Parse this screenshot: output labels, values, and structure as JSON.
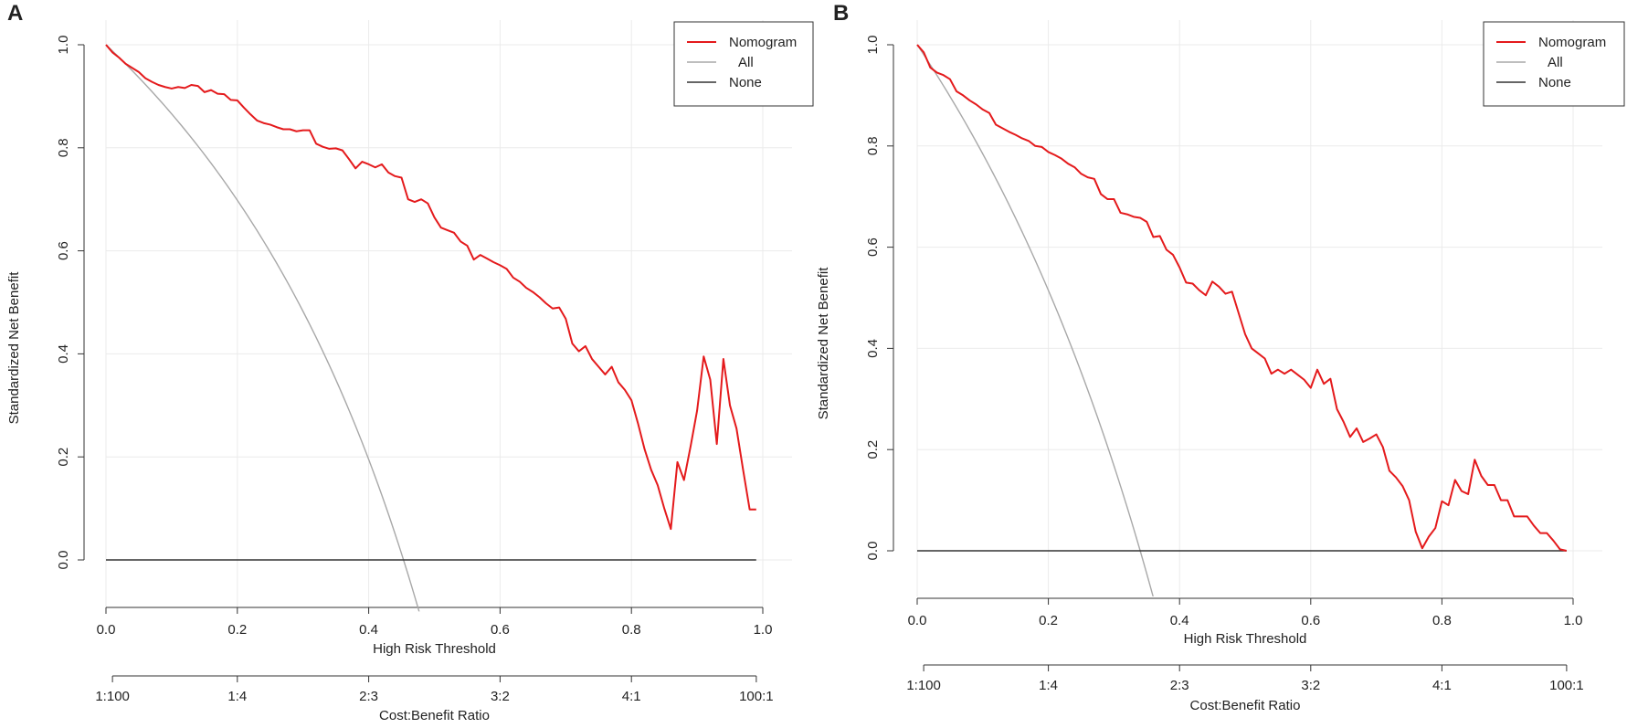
{
  "colors": {
    "model": "#e41a1c",
    "all": "#a8a8a8",
    "none": "#333333",
    "grid": "#ebebeb",
    "axis": "#333333"
  },
  "chart_data": [
    {
      "panel_label": "A",
      "type": "line",
      "title": "",
      "xlabel": "High Risk Threshold",
      "ylabel": "Standardized Net Benefit",
      "xlim": [
        0,
        1
      ],
      "ylim": [
        -0.1,
        1.0
      ],
      "x_ticks": [
        0,
        0.2,
        0.4,
        0.6,
        0.8,
        1.0
      ],
      "x_tick_labels": [
        "0.0",
        "0.2",
        "0.4",
        "0.6",
        "0.8",
        "1.0"
      ],
      "y_ticks": [
        0,
        0.2,
        0.4,
        0.6,
        0.8,
        1.0
      ],
      "y_tick_labels": [
        "0.0",
        "0.2",
        "0.4",
        "0.6",
        "0.8",
        "1.0"
      ],
      "secondary_xlabel": "Cost:Benefit Ratio",
      "secondary_ticks": [
        0.0099,
        0.2,
        0.4,
        0.6,
        0.8,
        0.9901
      ],
      "secondary_tick_labels": [
        "1:100",
        "1:4",
        "2:3",
        "3:2",
        "4:1",
        "100:1"
      ],
      "legend": {
        "position": "top-right",
        "entries": [
          "Nomogram",
          "All",
          "None"
        ]
      },
      "prevalence": 0.453,
      "series": [
        {
          "name": "Nomogram",
          "x": [
            0.0,
            0.01,
            0.02,
            0.03,
            0.04,
            0.05,
            0.06,
            0.07,
            0.08,
            0.09,
            0.1,
            0.11,
            0.12,
            0.13,
            0.14,
            0.15,
            0.16,
            0.17,
            0.18,
            0.19,
            0.2,
            0.21,
            0.22,
            0.23,
            0.24,
            0.25,
            0.26,
            0.27,
            0.28,
            0.29,
            0.3,
            0.31,
            0.32,
            0.33,
            0.34,
            0.35,
            0.36,
            0.37,
            0.38,
            0.39,
            0.4,
            0.41,
            0.42,
            0.43,
            0.44,
            0.45,
            0.46,
            0.47,
            0.48,
            0.49,
            0.5,
            0.51,
            0.52,
            0.53,
            0.54,
            0.55,
            0.56,
            0.57,
            0.58,
            0.59,
            0.6,
            0.61,
            0.62,
            0.63,
            0.64,
            0.65,
            0.66,
            0.67,
            0.68,
            0.69,
            0.7,
            0.71,
            0.72,
            0.73,
            0.74,
            0.75,
            0.76,
            0.77,
            0.78,
            0.79,
            0.8,
            0.81,
            0.82,
            0.83,
            0.84,
            0.85,
            0.86,
            0.87,
            0.88,
            0.89,
            0.9,
            0.91,
            0.92,
            0.93,
            0.94,
            0.95,
            0.96,
            0.97,
            0.98,
            0.99
          ],
          "y": [
            1.0,
            0.985,
            0.975,
            0.963,
            0.955,
            0.947,
            0.935,
            0.928,
            0.922,
            0.918,
            0.915,
            0.918,
            0.916,
            0.922,
            0.92,
            0.908,
            0.912,
            0.905,
            0.904,
            0.893,
            0.892,
            0.878,
            0.865,
            0.853,
            0.848,
            0.845,
            0.84,
            0.836,
            0.836,
            0.832,
            0.834,
            0.834,
            0.808,
            0.802,
            0.798,
            0.799,
            0.795,
            0.778,
            0.76,
            0.773,
            0.768,
            0.762,
            0.768,
            0.752,
            0.745,
            0.742,
            0.7,
            0.695,
            0.7,
            0.692,
            0.665,
            0.645,
            0.64,
            0.635,
            0.618,
            0.61,
            0.583,
            0.592,
            0.585,
            0.578,
            0.572,
            0.565,
            0.548,
            0.54,
            0.528,
            0.52,
            0.51,
            0.498,
            0.488,
            0.49,
            0.468,
            0.42,
            0.405,
            0.415,
            0.39,
            0.375,
            0.36,
            0.375,
            0.345,
            0.33,
            0.31,
            0.265,
            0.215,
            0.175,
            0.145,
            0.1,
            0.06,
            0.19,
            0.155,
            0.22,
            0.29,
            0.395,
            0.35,
            0.225,
            0.39,
            0.3,
            0.255,
            0.175,
            0.098,
            0.098
          ]
        }
      ]
    },
    {
      "panel_label": "B",
      "type": "line",
      "title": "",
      "xlabel": "High Risk Threshold",
      "ylabel": "Standardized Net Benefit",
      "xlim": [
        0,
        1
      ],
      "ylim": [
        -0.09,
        1.0
      ],
      "x_ticks": [
        0,
        0.2,
        0.4,
        0.6,
        0.8,
        1.0
      ],
      "x_tick_labels": [
        "0.0",
        "0.2",
        "0.4",
        "0.6",
        "0.8",
        "1.0"
      ],
      "y_ticks": [
        0,
        0.2,
        0.4,
        0.6,
        0.8,
        1.0
      ],
      "y_tick_labels": [
        "0.0",
        "0.2",
        "0.4",
        "0.6",
        "0.8",
        "1.0"
      ],
      "secondary_xlabel": "Cost:Benefit Ratio",
      "secondary_ticks": [
        0.0099,
        0.2,
        0.4,
        0.6,
        0.8,
        0.9901
      ],
      "secondary_tick_labels": [
        "1:100",
        "1:4",
        "2:3",
        "3:2",
        "4:1",
        "100:1"
      ],
      "legend": {
        "position": "top-right",
        "entries": [
          "Nomogram",
          "All",
          "None"
        ]
      },
      "prevalence": 0.34,
      "series": [
        {
          "name": "Nomogram",
          "x": [
            0.0,
            0.01,
            0.02,
            0.03,
            0.04,
            0.05,
            0.06,
            0.07,
            0.08,
            0.09,
            0.1,
            0.11,
            0.12,
            0.13,
            0.14,
            0.15,
            0.16,
            0.17,
            0.18,
            0.19,
            0.2,
            0.21,
            0.22,
            0.23,
            0.24,
            0.25,
            0.26,
            0.27,
            0.28,
            0.29,
            0.3,
            0.31,
            0.32,
            0.33,
            0.34,
            0.35,
            0.36,
            0.37,
            0.38,
            0.39,
            0.4,
            0.41,
            0.42,
            0.43,
            0.44,
            0.45,
            0.46,
            0.47,
            0.48,
            0.49,
            0.5,
            0.51,
            0.52,
            0.53,
            0.54,
            0.55,
            0.56,
            0.57,
            0.58,
            0.59,
            0.6,
            0.61,
            0.62,
            0.63,
            0.64,
            0.65,
            0.66,
            0.67,
            0.68,
            0.69,
            0.7,
            0.71,
            0.72,
            0.73,
            0.74,
            0.75,
            0.76,
            0.77,
            0.78,
            0.79,
            0.8,
            0.81,
            0.82,
            0.83,
            0.84,
            0.85,
            0.86,
            0.87,
            0.88,
            0.89,
            0.9,
            0.91,
            0.92,
            0.93,
            0.94,
            0.95,
            0.96,
            0.97,
            0.98,
            0.99
          ],
          "y": [
            1.0,
            0.985,
            0.955,
            0.945,
            0.94,
            0.932,
            0.908,
            0.9,
            0.89,
            0.882,
            0.872,
            0.865,
            0.842,
            0.835,
            0.828,
            0.822,
            0.815,
            0.81,
            0.8,
            0.798,
            0.788,
            0.782,
            0.775,
            0.765,
            0.758,
            0.745,
            0.738,
            0.735,
            0.705,
            0.695,
            0.695,
            0.668,
            0.665,
            0.66,
            0.658,
            0.65,
            0.62,
            0.622,
            0.595,
            0.585,
            0.56,
            0.53,
            0.528,
            0.515,
            0.505,
            0.532,
            0.522,
            0.508,
            0.512,
            0.47,
            0.428,
            0.4,
            0.39,
            0.38,
            0.35,
            0.358,
            0.35,
            0.358,
            0.348,
            0.338,
            0.322,
            0.358,
            0.33,
            0.34,
            0.28,
            0.255,
            0.225,
            0.242,
            0.215,
            0.222,
            0.23,
            0.205,
            0.158,
            0.145,
            0.128,
            0.1,
            0.038,
            0.005,
            0.028,
            0.045,
            0.098,
            0.09,
            0.14,
            0.118,
            0.112,
            0.18,
            0.148,
            0.13,
            0.13,
            0.1,
            0.1,
            0.068,
            0.068,
            0.068,
            0.05,
            0.035,
            0.035,
            0.02,
            0.003,
            0.0
          ]
        }
      ]
    }
  ]
}
